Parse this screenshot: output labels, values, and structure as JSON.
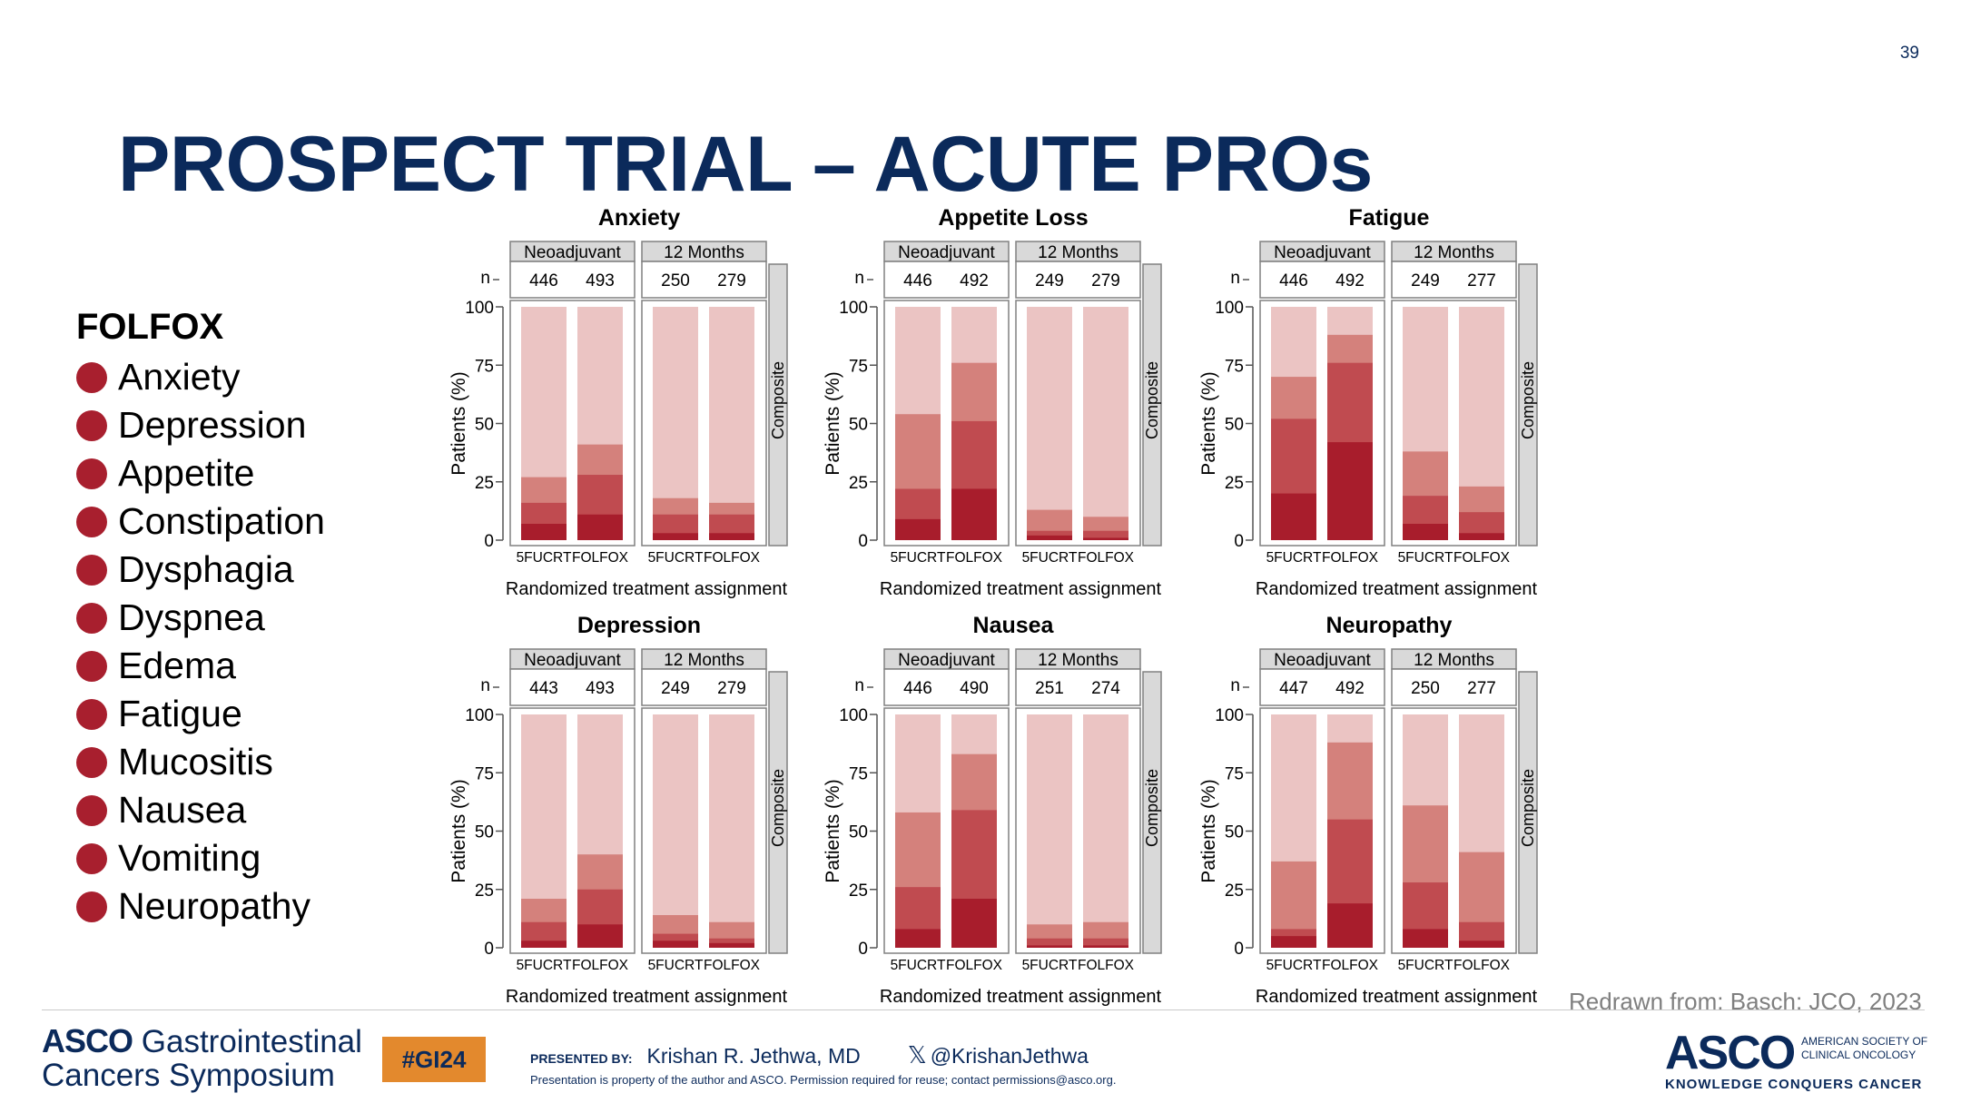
{
  "slide": {
    "number": "39",
    "title": "PROSPECT TRIAL – ACUTE PROs",
    "credit": "Redrawn from: Basch: JCO, 2023"
  },
  "legend": {
    "heading": "FOLFOX",
    "dot_color": "#a81f2e",
    "items": [
      "Anxiety",
      "Depression",
      "Appetite",
      "Constipation",
      "Dysphagia",
      "Dyspnea",
      "Edema",
      "Fatigue",
      "Mucositis",
      "Nausea",
      "Vomiting",
      "Neuropathy"
    ]
  },
  "footer": {
    "gi_line1_bold": "ASCO",
    "gi_line1": "Gastrointestinal",
    "gi_line2": "Cancers Symposium",
    "hashtag": "#GI24",
    "presented_by": "PRESENTED BY:",
    "presenter": "Krishan R. Jethwa, MD",
    "handle": "@KrishanJethwa",
    "x_icon": "x-logo-icon",
    "property_note": "Presentation is property of the author and ASCO. Permission required for reuse; contact permissions@asco.org.",
    "asco_logo": "ASCO",
    "asco_full_1": "AMERICAN SOCIETY OF",
    "asco_full_2": "CLINICAL ONCOLOGY",
    "tagline": "KNOWLEDGE CONQUERS CANCER"
  },
  "chart_data": [
    {
      "type": "bar",
      "stacked": true,
      "title": "Anxiety",
      "panels": [
        "Neoadjuvant",
        "12 Months"
      ],
      "strip": "Composite",
      "n_label": "n",
      "categories": [
        "5FUCRT",
        "FOLFOX"
      ],
      "n": [
        [
          "446",
          "493"
        ],
        [
          "250",
          "279"
        ]
      ],
      "ylabel": "Patients (%)",
      "xlabel": "Randomized treatment assignment",
      "ylim": [
        0,
        100
      ],
      "yticks": [
        "0",
        "25",
        "50",
        "75",
        "100"
      ],
      "cumulative": [
        [
          [
            7,
            16,
            27
          ],
          [
            11,
            28,
            41
          ]
        ],
        [
          [
            3,
            11,
            18
          ],
          [
            3,
            11,
            16
          ]
        ]
      ]
    },
    {
      "type": "bar",
      "stacked": true,
      "title": "Appetite Loss",
      "panels": [
        "Neoadjuvant",
        "12 Months"
      ],
      "strip": "Composite",
      "n_label": "n",
      "categories": [
        "5FUCRT",
        "FOLFOX"
      ],
      "n": [
        [
          "446",
          "492"
        ],
        [
          "249",
          "279"
        ]
      ],
      "ylabel": "Patients (%)",
      "xlabel": "Randomized treatment assignment",
      "ylim": [
        0,
        100
      ],
      "yticks": [
        "0",
        "25",
        "50",
        "75",
        "100"
      ],
      "cumulative": [
        [
          [
            9,
            22,
            54
          ],
          [
            22,
            51,
            76
          ]
        ],
        [
          [
            2,
            4,
            13
          ],
          [
            1,
            4,
            10
          ]
        ]
      ]
    },
    {
      "type": "bar",
      "stacked": true,
      "title": "Fatigue",
      "panels": [
        "Neoadjuvant",
        "12 Months"
      ],
      "strip": "Composite",
      "n_label": "n",
      "categories": [
        "5FUCRT",
        "FOLFOX"
      ],
      "n": [
        [
          "446",
          "492"
        ],
        [
          "249",
          "277"
        ]
      ],
      "ylabel": "Patients (%)",
      "xlabel": "Randomized treatment assignment",
      "ylim": [
        0,
        100
      ],
      "yticks": [
        "0",
        "25",
        "50",
        "75",
        "100"
      ],
      "cumulative": [
        [
          [
            20,
            52,
            70
          ],
          [
            42,
            76,
            88
          ]
        ],
        [
          [
            7,
            19,
            38
          ],
          [
            3,
            12,
            23
          ]
        ]
      ]
    },
    {
      "type": "bar",
      "stacked": true,
      "title": "Depression",
      "panels": [
        "Neoadjuvant",
        "12 Months"
      ],
      "strip": "Composite",
      "n_label": "n",
      "categories": [
        "5FUCRT",
        "FOLFOX"
      ],
      "n": [
        [
          "443",
          "493"
        ],
        [
          "249",
          "279"
        ]
      ],
      "ylabel": "Patients (%)",
      "xlabel": "Randomized treatment assignment",
      "ylim": [
        0,
        100
      ],
      "yticks": [
        "0",
        "25",
        "50",
        "75",
        "100"
      ],
      "cumulative": [
        [
          [
            3,
            11,
            21
          ],
          [
            10,
            25,
            40
          ]
        ],
        [
          [
            3,
            6,
            14
          ],
          [
            2,
            4,
            11
          ]
        ]
      ]
    },
    {
      "type": "bar",
      "stacked": true,
      "title": "Nausea",
      "panels": [
        "Neoadjuvant",
        "12 Months"
      ],
      "strip": "Composite",
      "n_label": "n",
      "categories": [
        "5FUCRT",
        "FOLFOX"
      ],
      "n": [
        [
          "446",
          "490"
        ],
        [
          "251",
          "274"
        ]
      ],
      "ylabel": "Patients (%)",
      "xlabel": "Randomized treatment assignment",
      "ylim": [
        0,
        100
      ],
      "yticks": [
        "0",
        "25",
        "50",
        "75",
        "100"
      ],
      "cumulative": [
        [
          [
            8,
            26,
            58
          ],
          [
            21,
            59,
            83
          ]
        ],
        [
          [
            1,
            4,
            10
          ],
          [
            1,
            4,
            11
          ]
        ]
      ]
    },
    {
      "type": "bar",
      "stacked": true,
      "title": "Neuropathy",
      "panels": [
        "Neoadjuvant",
        "12 Months"
      ],
      "strip": "Composite",
      "n_label": "n",
      "categories": [
        "5FUCRT",
        "FOLFOX"
      ],
      "n": [
        [
          "447",
          "492"
        ],
        [
          "250",
          "277"
        ]
      ],
      "ylabel": "Patients (%)",
      "xlabel": "Randomized treatment assignment",
      "ylim": [
        0,
        100
      ],
      "yticks": [
        "0",
        "25",
        "50",
        "75",
        "100"
      ],
      "cumulative": [
        [
          [
            5,
            8,
            37
          ],
          [
            19,
            55,
            88
          ]
        ],
        [
          [
            8,
            28,
            61
          ],
          [
            3,
            11,
            41
          ]
        ]
      ]
    }
  ],
  "chart_colors": [
    "#a81d2c",
    "#c04b50",
    "#d4817c",
    "#ebc4c3"
  ]
}
